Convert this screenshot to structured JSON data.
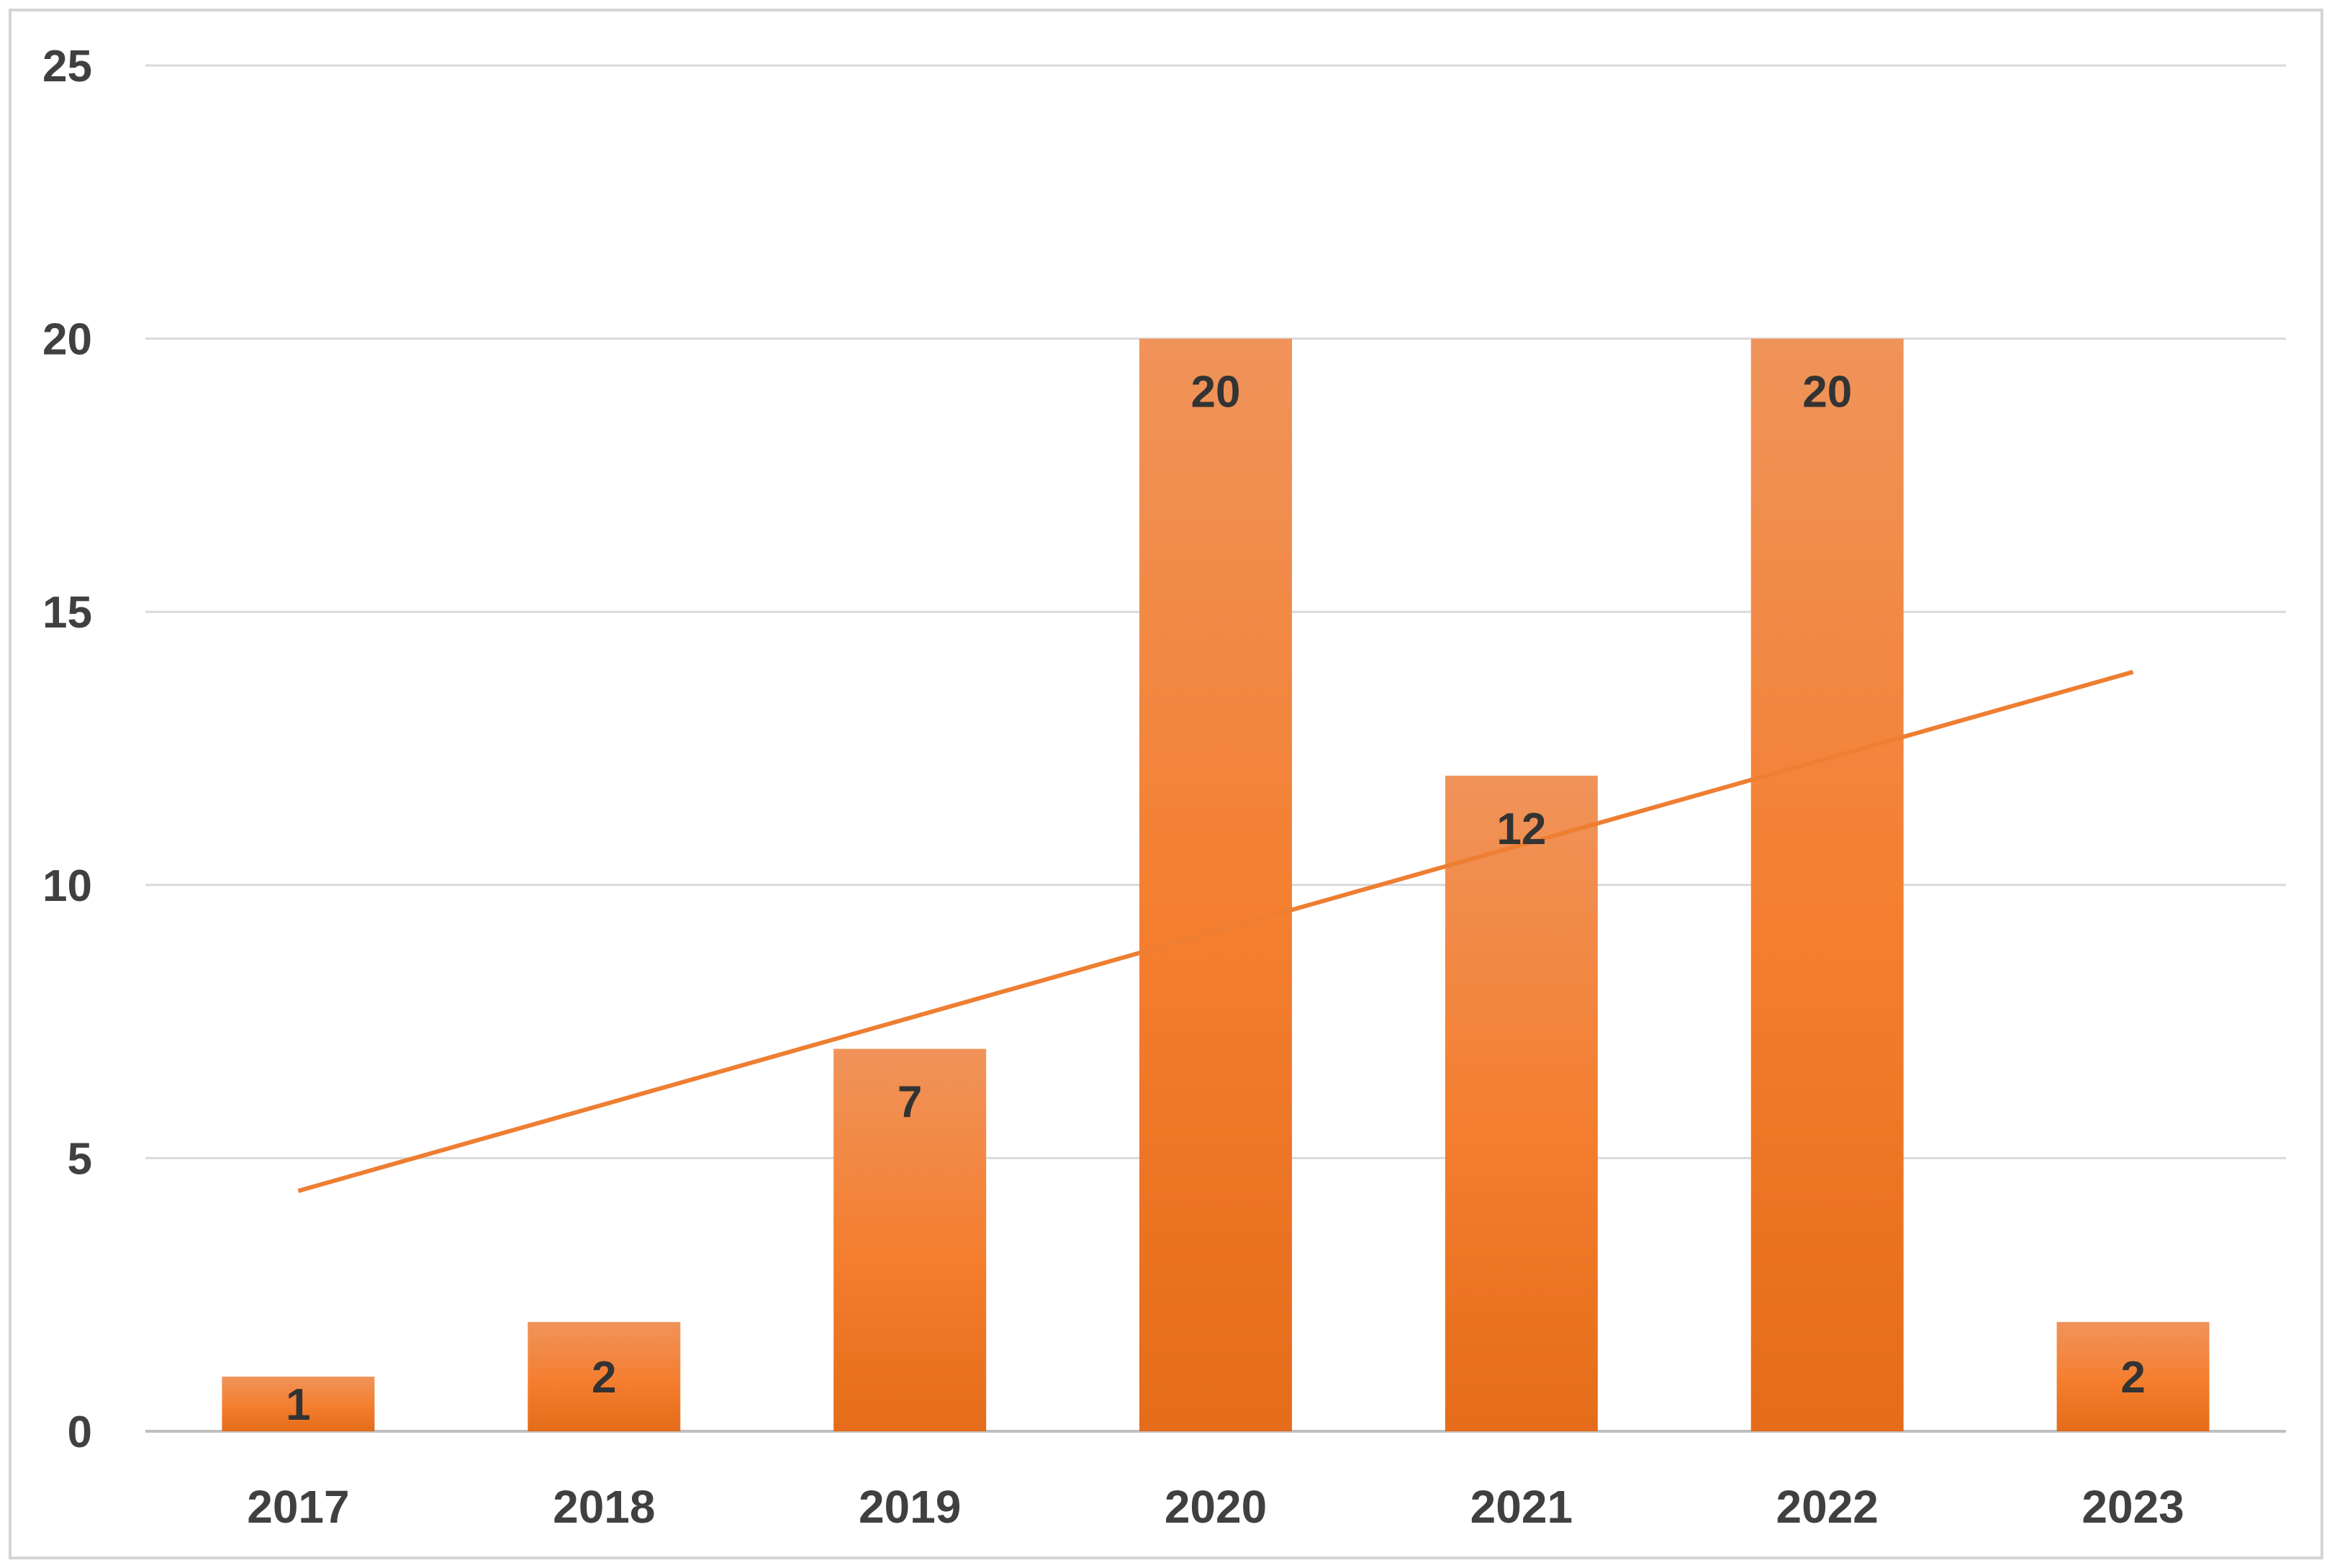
{
  "chart_data": {
    "type": "bar",
    "title": "",
    "xlabel": "",
    "ylabel": "",
    "categories": [
      "2017",
      "2018",
      "2019",
      "2020",
      "2021",
      "2022",
      "2023"
    ],
    "values": [
      1,
      2,
      7,
      20,
      12,
      20,
      2
    ],
    "data_labels": [
      "1",
      "2",
      "7",
      "20",
      "12",
      "20",
      "2"
    ],
    "y_ticks": [
      "0",
      "5",
      "10",
      "15",
      "20",
      "25"
    ],
    "ylim": [
      0,
      25
    ],
    "grid": true,
    "legend": "none",
    "trendline": {
      "type": "linear",
      "start": 4.4,
      "end": 13.9
    },
    "colors": {
      "bar_top": "#F0935A",
      "bar_mid": "#F47E2E",
      "bar_bottom": "#E46C1A",
      "trendline": "#EE7E32",
      "grid": "#d9d9d9",
      "axis": "#bfbfbf"
    }
  }
}
